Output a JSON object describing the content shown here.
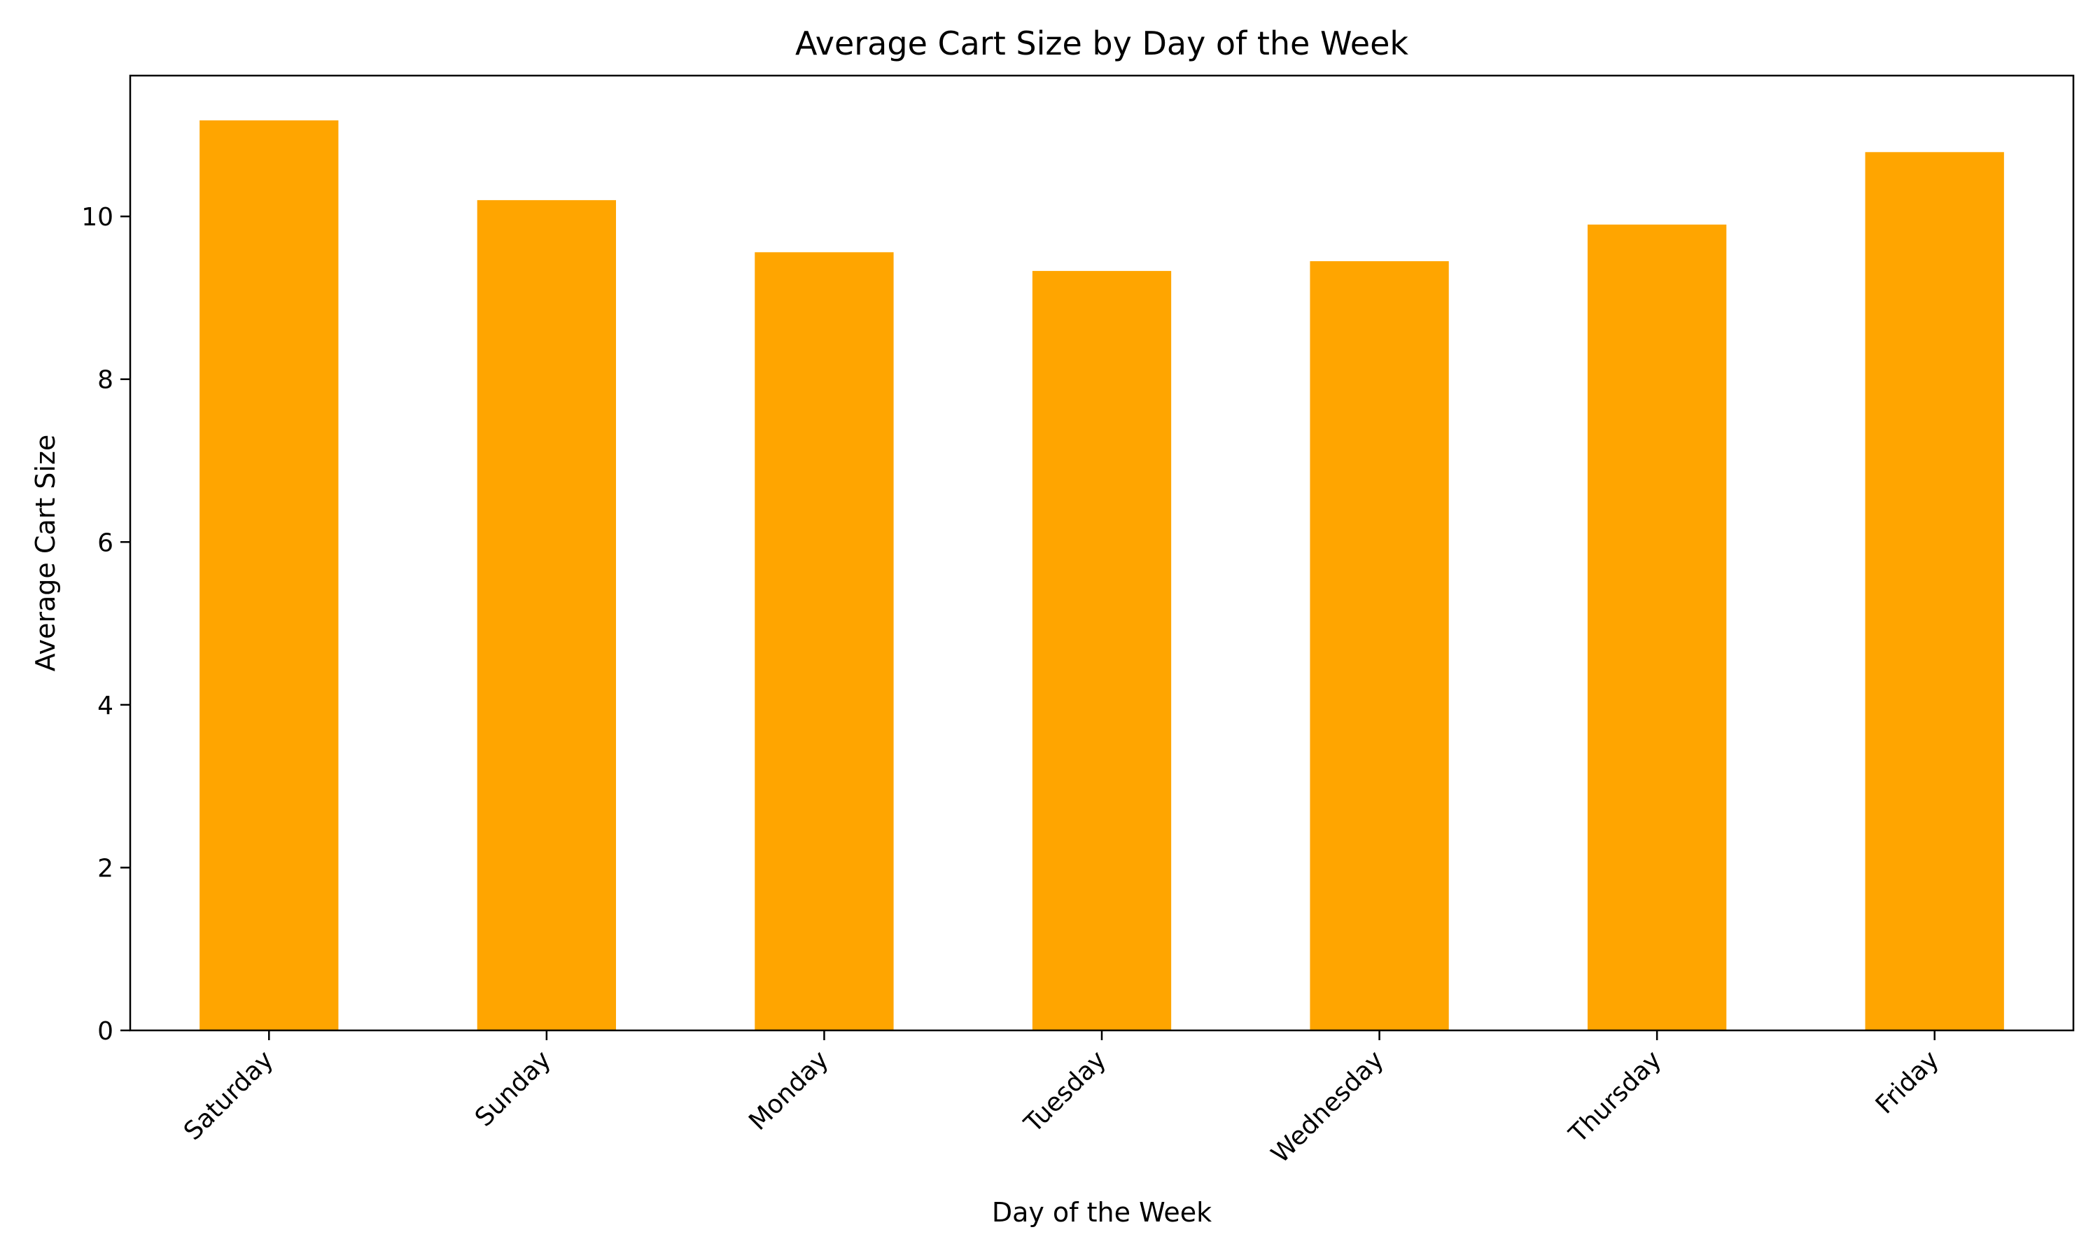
{
  "chart_data": {
    "type": "bar",
    "title": "Average Cart Size by Day of the Week",
    "xlabel": "Day of the Week",
    "ylabel": "Average Cart Size",
    "categories": [
      "Saturday",
      "Sunday",
      "Monday",
      "Tuesday",
      "Wednesday",
      "Thursday",
      "Friday"
    ],
    "values": [
      11.18,
      10.2,
      9.56,
      9.33,
      9.45,
      9.9,
      10.79
    ],
    "ylim": [
      0,
      11.73
    ],
    "yticks": [
      0,
      2,
      4,
      6,
      8,
      10
    ],
    "ytick_labels": [
      "0",
      "2",
      "4",
      "6",
      "8",
      "10"
    ],
    "bar_color": "#ffa500",
    "grid": false,
    "legend": false
  }
}
